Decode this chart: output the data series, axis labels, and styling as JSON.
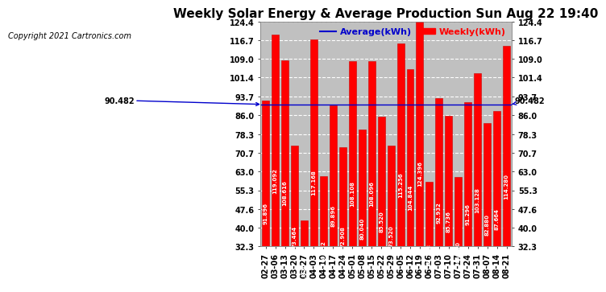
{
  "title": "Weekly Solar Energy & Average Production Sun Aug 22 19:40",
  "copyright": "Copyright 2021 Cartronics.com",
  "legend_average": "Average(kWh)",
  "legend_weekly": "Weekly(kWh)",
  "average_value": 90.482,
  "categories": [
    "02-27",
    "03-06",
    "03-13",
    "03-20",
    "03-27",
    "04-03",
    "04-10",
    "04-17",
    "04-24",
    "05-01",
    "05-08",
    "05-15",
    "05-22",
    "05-29",
    "06-05",
    "06-12",
    "06-19",
    "06-26",
    "07-03",
    "07-10",
    "07-17",
    "07-24",
    "07-31",
    "08-07",
    "08-14",
    "08-21"
  ],
  "values": [
    91.896,
    119.092,
    108.616,
    73.464,
    42.82,
    117.168,
    60.932,
    89.896,
    72.908,
    108.108,
    80.04,
    108.096,
    85.52,
    73.52,
    115.256,
    104.844,
    124.396,
    58.708,
    92.932,
    85.736,
    60.64,
    91.296,
    103.128,
    82.88,
    87.664,
    114.28
  ],
  "bar_color": "#ff0000",
  "bar_edge_color": "#cc0000",
  "average_line_color": "#0000cc",
  "average_label_color": "#000000",
  "title_color": "#000000",
  "yticks": [
    32.3,
    40.0,
    47.6,
    55.3,
    63.0,
    70.7,
    78.3,
    86.0,
    93.7,
    101.4,
    109.0,
    116.7,
    124.4
  ],
  "background_color": "#ffffff",
  "grid_color": "#ffffff",
  "plot_bg_color": "#c0c0c0",
  "title_fontsize": 11,
  "tick_fontsize": 7,
  "bar_label_fontsize": 5,
  "copyright_fontsize": 7,
  "legend_fontsize": 8
}
